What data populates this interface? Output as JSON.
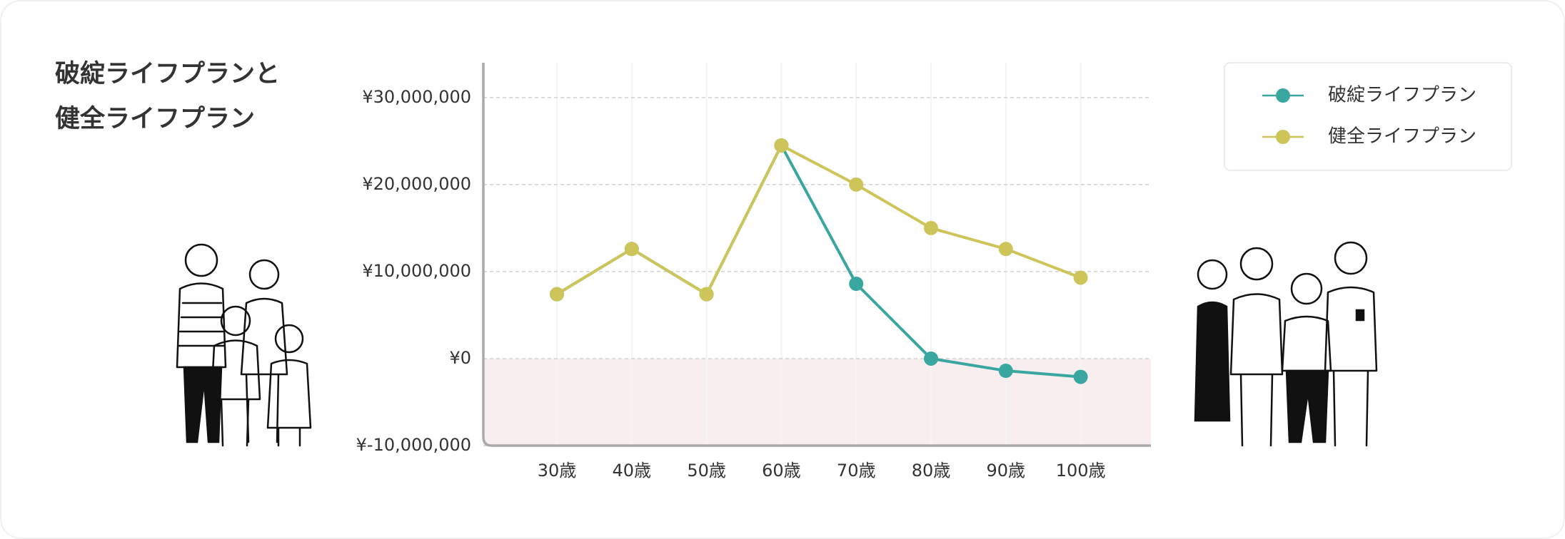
{
  "chart_data": {
    "type": "line",
    "title": [
      "破綻ライフプランと",
      "健全ライフプラン"
    ],
    "categories": [
      "30歳",
      "40歳",
      "50歳",
      "60歳",
      "70歳",
      "80歳",
      "90歳",
      "100歳"
    ],
    "series": [
      {
        "name": "破綻ライフプラン",
        "color": "#3aa6a0",
        "values": [
          7400000,
          12600000,
          7400000,
          24500000,
          8600000,
          0,
          -1400000,
          -2100000
        ]
      },
      {
        "name": "健全ライフプラン",
        "color": "#cdc55a",
        "values": [
          7400000,
          12600000,
          7400000,
          24500000,
          20000000,
          15000000,
          12600000,
          9300000
        ]
      }
    ],
    "ylim": [
      -10000000,
      34000000
    ],
    "yticks": [
      {
        "value": -10000000,
        "label": "¥-10,000,000"
      },
      {
        "value": 0,
        "label": "¥0"
      },
      {
        "value": 10000000,
        "label": "¥10,000,000"
      },
      {
        "value": 20000000,
        "label": "¥20,000,000"
      },
      {
        "value": 30000000,
        "label": "¥30,000,000"
      }
    ],
    "grid": true,
    "legend": "upper right"
  }
}
